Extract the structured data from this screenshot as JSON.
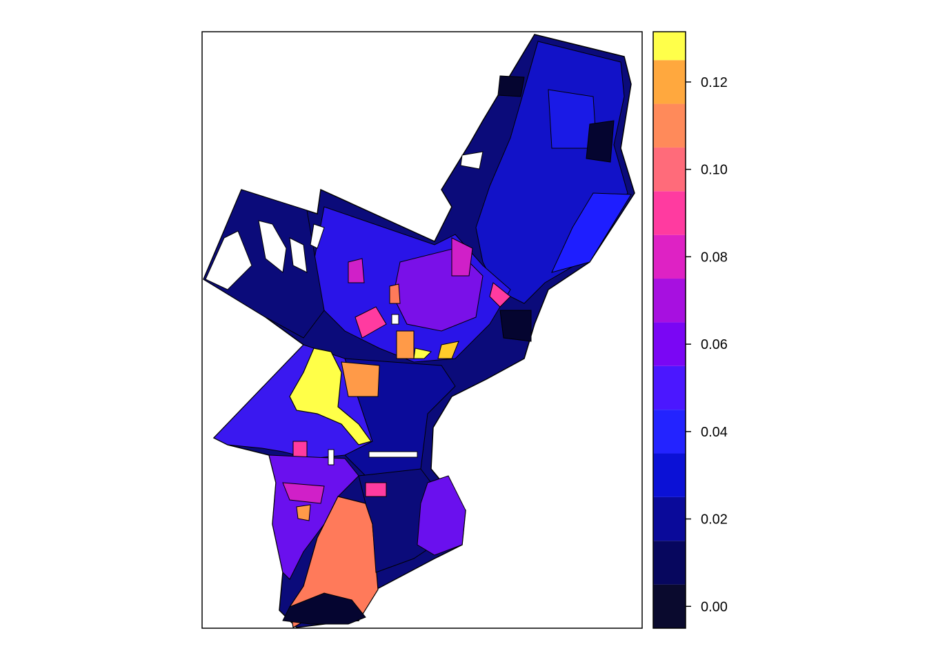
{
  "colorbar": {
    "min": -0.005,
    "max": 0.1315,
    "bands": [
      {
        "from": -0.005,
        "to": 0.005,
        "color": "#0a0a2e"
      },
      {
        "from": 0.005,
        "to": 0.015,
        "color": "#07075e"
      },
      {
        "from": 0.015,
        "to": 0.025,
        "color": "#0a0a9a"
      },
      {
        "from": 0.025,
        "to": 0.035,
        "color": "#0b11d6"
      },
      {
        "from": 0.035,
        "to": 0.045,
        "color": "#2323ff"
      },
      {
        "from": 0.045,
        "to": 0.055,
        "color": "#4b17ff"
      },
      {
        "from": 0.055,
        "to": 0.065,
        "color": "#7a06f4"
      },
      {
        "from": 0.065,
        "to": 0.075,
        "color": "#a710e0"
      },
      {
        "from": 0.075,
        "to": 0.085,
        "color": "#de22c4"
      },
      {
        "from": 0.085,
        "to": 0.095,
        "color": "#ff3ba0"
      },
      {
        "from": 0.095,
        "to": 0.105,
        "color": "#ff6b7a"
      },
      {
        "from": 0.105,
        "to": 0.115,
        "color": "#ff8a5a"
      },
      {
        "from": 0.115,
        "to": 0.125,
        "color": "#ffa83e"
      },
      {
        "from": 0.125,
        "to": 0.1315,
        "color": "#ffcc2a"
      }
    ],
    "top_band_color": "#ffff4a",
    "ticks": [
      {
        "value": 0.0,
        "label": "0.00"
      },
      {
        "value": 0.02,
        "label": "0.02"
      },
      {
        "value": 0.04,
        "label": "0.04"
      },
      {
        "value": 0.06,
        "label": "0.06"
      },
      {
        "value": 0.08,
        "label": "0.08"
      },
      {
        "value": 0.1,
        "label": "0.10"
      },
      {
        "value": 0.12,
        "label": "0.12"
      }
    ]
  },
  "map_colors": {
    "outline": "#000000",
    "base_fill": "#0b0b7a",
    "northeast_fill": "#1212c8",
    "river_fill": "#2a2aff",
    "center_fill": "#7a10e8",
    "magenta": "#d020c8",
    "pink": "#ff3ba0",
    "salmon": "#ff7a5a",
    "orange": "#ff9a48",
    "yellow": "#ffff48",
    "dark": "#050530",
    "missing": "#ffffff"
  }
}
